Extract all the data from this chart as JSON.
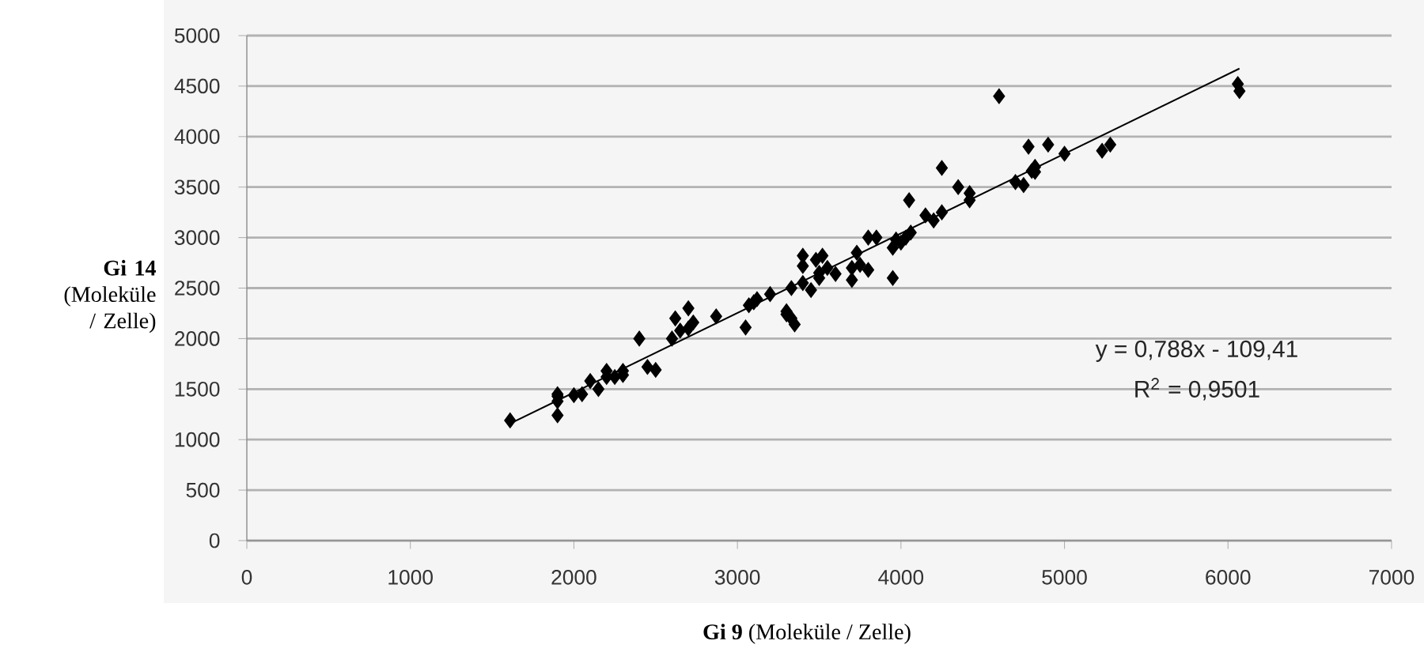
{
  "chart_data": {
    "type": "scatter",
    "xlabel": "**Gi 9** (Moleküle / Zelle)",
    "ylabel": "**Gi 14** (Moleküle / Zelle)",
    "xlim": [
      0,
      7000
    ],
    "xticks": [
      0,
      1000,
      2000,
      3000,
      4000,
      5000,
      6000,
      7000
    ],
    "ylim": [
      0,
      5000
    ],
    "yticks": [
      0,
      500,
      1000,
      1500,
      2000,
      2500,
      3000,
      3500,
      4000,
      4500,
      5000
    ],
    "grid": "y",
    "marker": "diamond",
    "series": [
      {
        "color": "#000000",
        "x": [
          1610,
          1900,
          1900,
          1900,
          1900,
          2000,
          2050,
          2100,
          2150,
          2200,
          2200,
          2250,
          2300,
          2300,
          2400,
          2450,
          2500,
          2600,
          2620,
          2650,
          2700,
          2700,
          2730,
          2870,
          3050,
          3070,
          3100,
          3120,
          3200,
          3300,
          3300,
          3330,
          3350,
          3330,
          3400,
          3400,
          3400,
          3450,
          3480,
          3500,
          3520,
          3550,
          3500,
          3600,
          3700,
          3700,
          3730,
          3750,
          3800,
          3800,
          3850,
          3950,
          3950,
          3970,
          4000,
          4030,
          4060,
          4050,
          4150,
          4200,
          4250,
          4250,
          4350,
          4420,
          4420,
          4600,
          4700,
          4750,
          4780,
          4800,
          4820,
          4820,
          4900,
          5000,
          5230,
          5280,
          6060,
          6070
        ],
        "values": [
          1190,
          1240,
          1380,
          1430,
          1450,
          1440,
          1450,
          1580,
          1500,
          1620,
          1680,
          1620,
          1640,
          1680,
          2000,
          1720,
          1690,
          2000,
          2200,
          2080,
          2100,
          2300,
          2160,
          2220,
          2110,
          2330,
          2360,
          2390,
          2440,
          2240,
          2270,
          2200,
          2140,
          2500,
          2550,
          2720,
          2820,
          2480,
          2780,
          2650,
          2820,
          2700,
          2600,
          2640,
          2580,
          2700,
          2850,
          2730,
          2680,
          3000,
          3000,
          2600,
          2900,
          2980,
          2950,
          3000,
          3050,
          3370,
          3220,
          3170,
          3250,
          3690,
          3500,
          3440,
          3370,
          4400,
          3550,
          3520,
          3900,
          3660,
          3700,
          3650,
          3920,
          3830,
          3860,
          3920,
          4520,
          4450
        ]
      },
      {
        "type": "line",
        "color": "#000000",
        "marker": "none",
        "x": [
          1610,
          6070
        ],
        "values": [
          1159,
          4673
        ]
      }
    ],
    "annotations": [
      "y = 0,788x - 109,41",
      "R$^{2}$ = 0,9501"
    ]
  }
}
